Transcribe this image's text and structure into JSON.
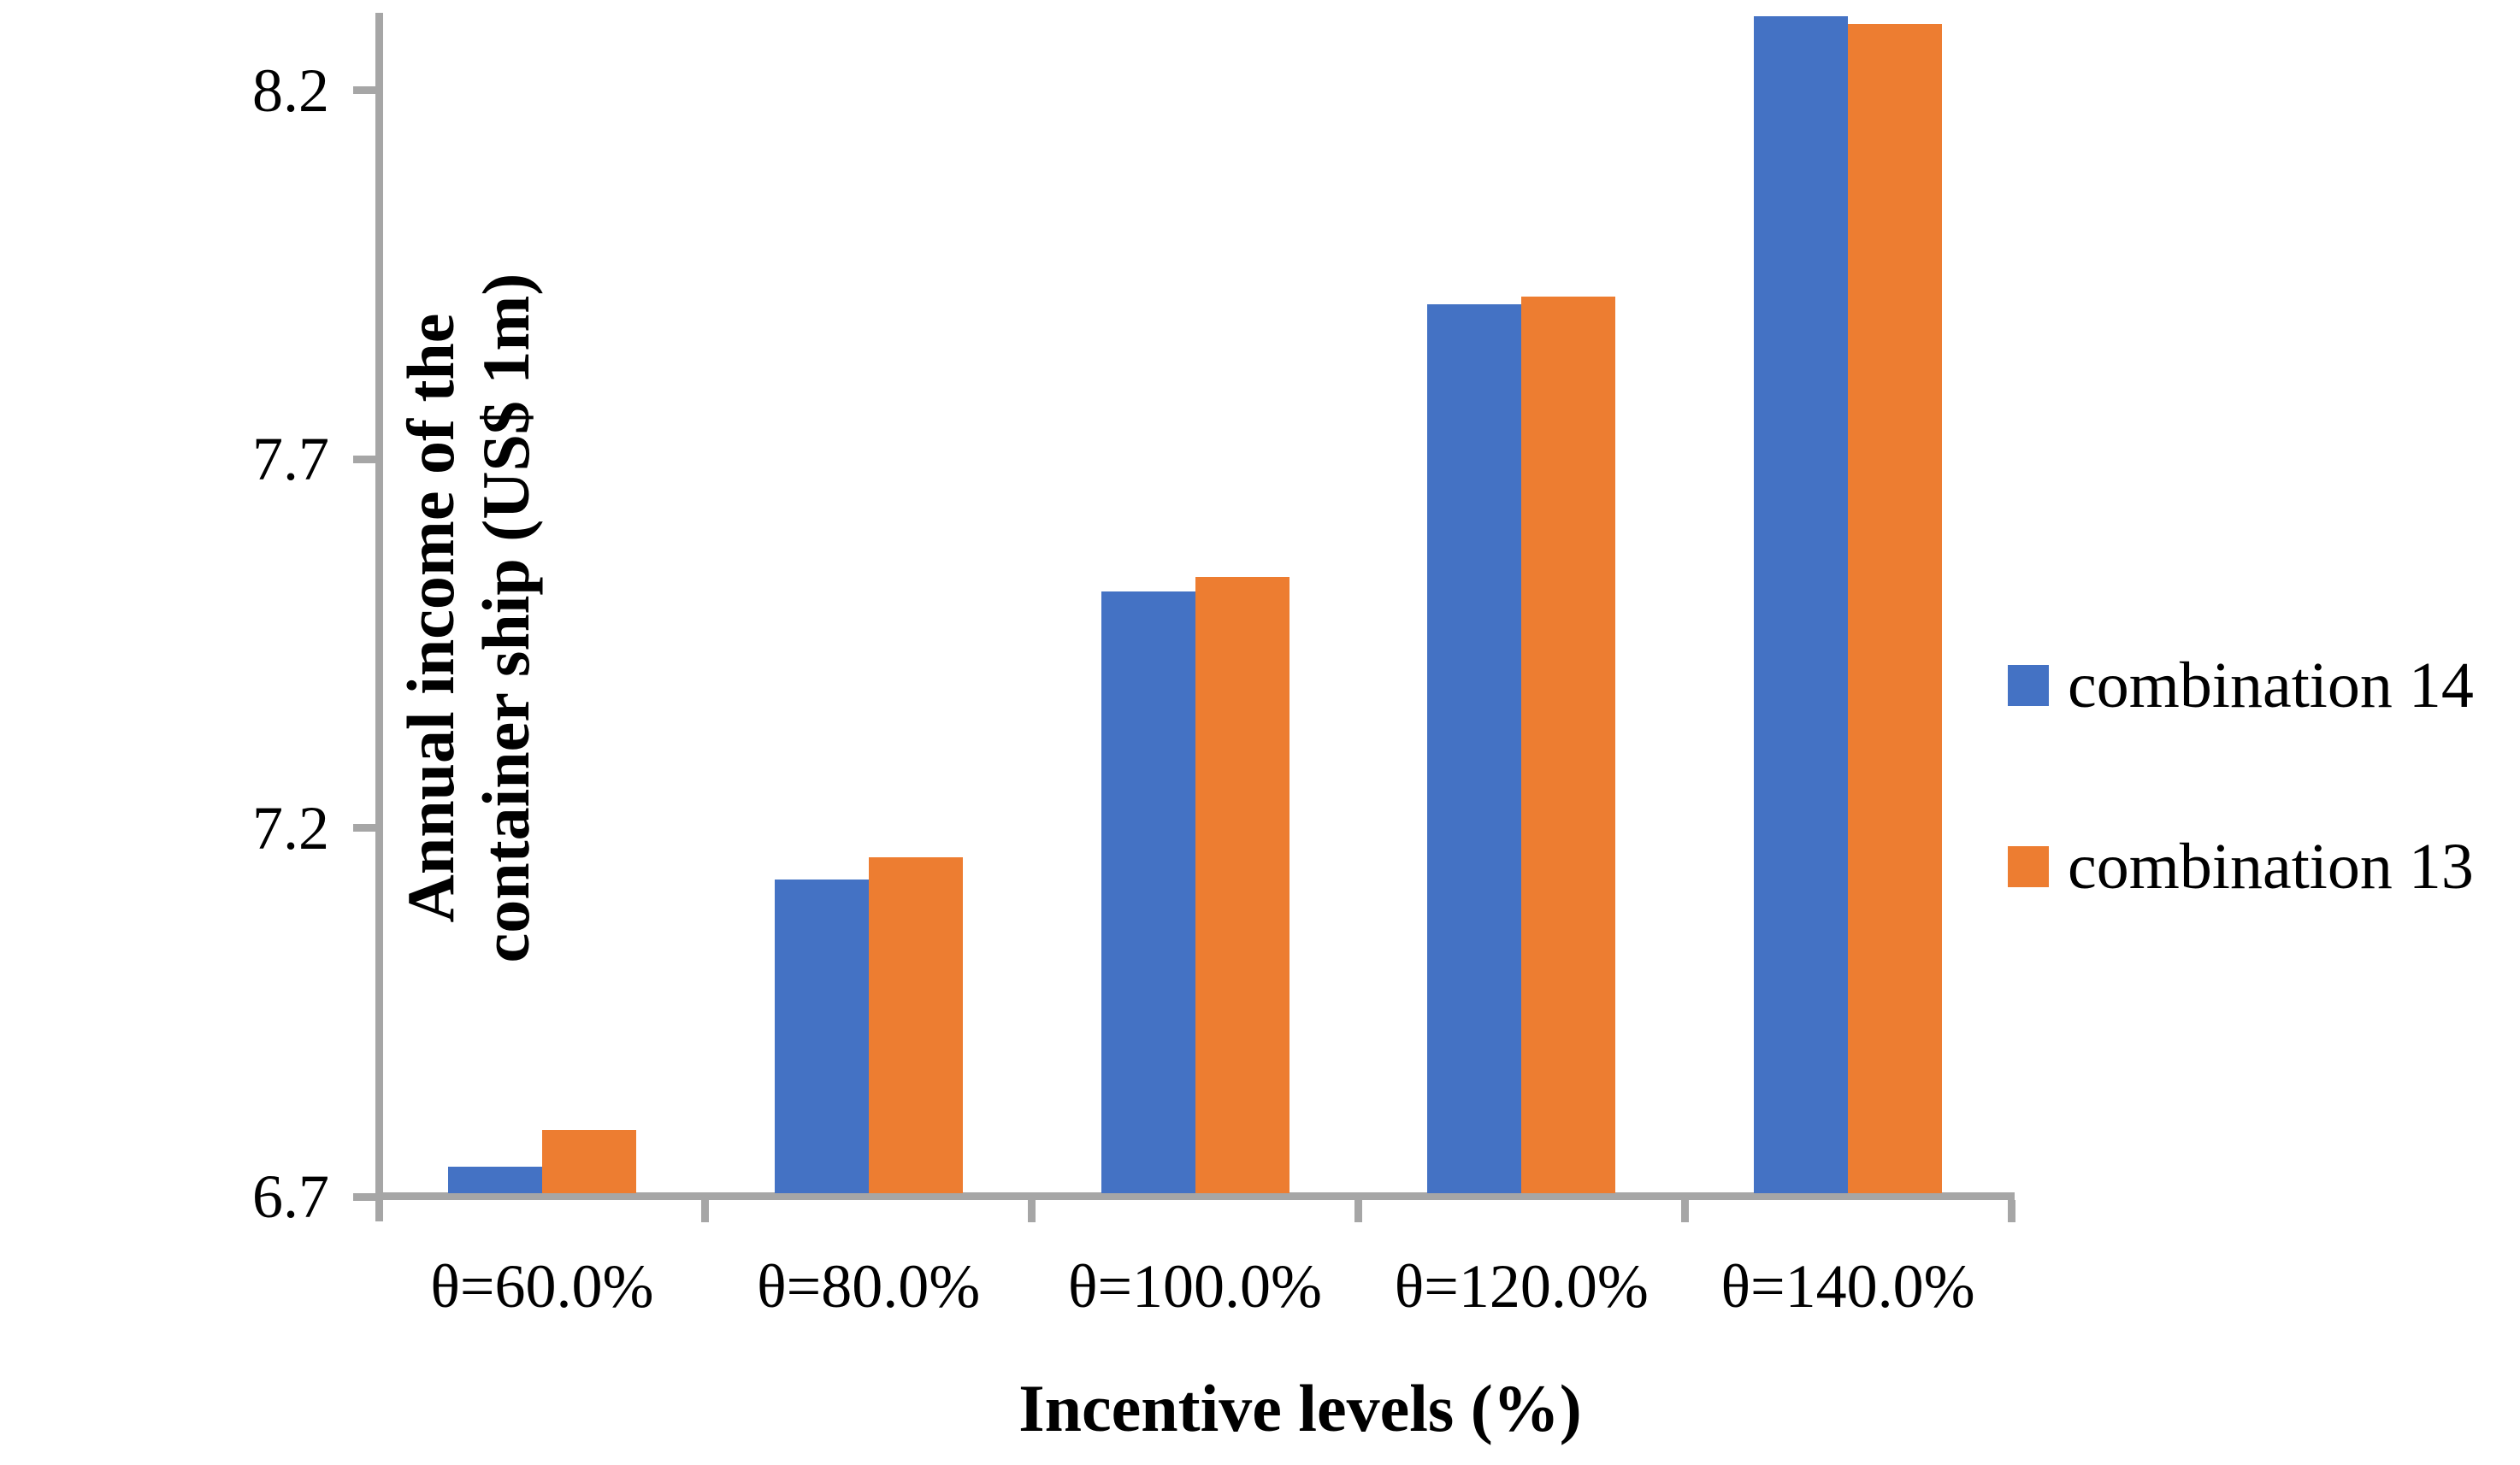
{
  "figure": {
    "background": "#ffffff",
    "axis_color": "#A6A6A6",
    "text_color": "#000000"
  },
  "chart_data": {
    "type": "bar",
    "title": "",
    "xlabel": "Incentive levels (%)",
    "ylabel": "Annual income of the\ncontainer ship (US$ 1m)",
    "categories": [
      "θ=60.0%",
      "θ=80.0%",
      "θ=100.0%",
      "θ=120.0%",
      "θ=140.0%"
    ],
    "series": [
      {
        "name": "combination 14",
        "color": "#4472C4",
        "values": [
          6.74,
          7.13,
          7.52,
          7.91,
          8.3
        ]
      },
      {
        "name": "combination 13",
        "color": "#ED7D31",
        "values": [
          6.79,
          7.16,
          7.54,
          7.92,
          8.29
        ]
      }
    ],
    "yticks": [
      6.7,
      7.2,
      7.7,
      8.2
    ],
    "ytick_labels": [
      "6.7",
      "7.2",
      "7.7",
      "8.2"
    ],
    "ylim": [
      6.7,
      8.305
    ],
    "grid": false,
    "legend_position": "right"
  }
}
